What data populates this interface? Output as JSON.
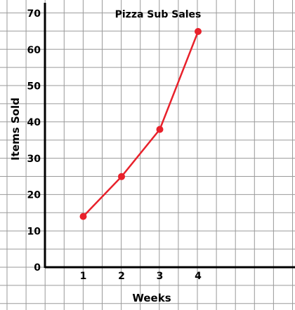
{
  "chart_data": {
    "type": "line",
    "title": "Pizza Sub Sales",
    "xlabel": "Weeks",
    "ylabel": "Items Sold",
    "x": [
      1,
      2,
      3,
      4
    ],
    "series": [
      {
        "values": [
          14,
          25,
          38,
          65
        ],
        "color": "#e8212b"
      }
    ],
    "x_ticks": [
      "1",
      "2",
      "3",
      "4"
    ],
    "y_ticks": [
      "0",
      "10",
      "20",
      "30",
      "40",
      "50",
      "60",
      "70"
    ],
    "xlim": [
      0,
      6
    ],
    "ylim": [
      0,
      70
    ],
    "grid": true,
    "line_color": "#e8212b",
    "grid_color": "#9a9a9a",
    "axis_color": "#000000"
  }
}
